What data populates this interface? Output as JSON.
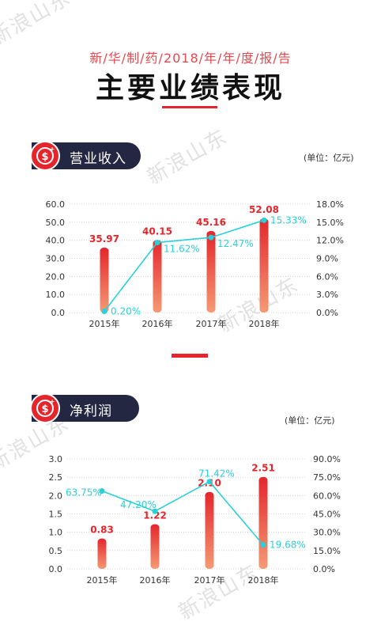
{
  "header": {
    "subtitle": "新/华/制/药/2018/年/年/度/报/告",
    "title": "主要业绩表现"
  },
  "watermark": "新浪山东",
  "colors": {
    "bar_top": "#e4262c",
    "bar_bottom": "#f59a74",
    "line": "#2ad0d8",
    "pill_bg": "#232741",
    "accent": "#e4262c"
  },
  "sections": [
    {
      "label": "营业收入",
      "unit": "(单位：亿元)",
      "icon": "dollar-coin-icon"
    },
    {
      "label": "净利润",
      "unit": "(单位：亿元)",
      "icon": "dollar-coin-icon"
    }
  ],
  "chart_data": [
    {
      "type": "bar",
      "categories": [
        "2015年",
        "2016年",
        "2017年",
        "2018年"
      ],
      "series": [
        {
          "type": "bar",
          "values": [
            35.97,
            40.15,
            45.16,
            52.08
          ],
          "labels": [
            "35.97",
            "40.15",
            "45.16",
            "52.08"
          ]
        },
        {
          "type": "line",
          "axis": "right",
          "values": [
            0.2,
            11.62,
            12.47,
            15.33
          ],
          "labels": [
            "0.20%",
            "11.62%",
            "12.47%",
            "15.33%"
          ]
        }
      ],
      "ylim": [
        0,
        60
      ],
      "yticks": [
        "0.0",
        "10.0",
        "20.0",
        "30.0",
        "40.0",
        "50.0",
        "60.0"
      ],
      "y2lim": [
        0,
        18
      ],
      "y2ticks": [
        "0.0%",
        "3.0%",
        "6.0%",
        "9.0%",
        "12.0%",
        "15.0%",
        "18.0%"
      ],
      "grid": true
    },
    {
      "type": "bar",
      "categories": [
        "2015年",
        "2016年",
        "2017年",
        "2018年"
      ],
      "series": [
        {
          "type": "bar",
          "values": [
            0.83,
            1.22,
            2.1,
            2.51
          ],
          "labels": [
            "0.83",
            "1.22",
            "2.10",
            "2.51"
          ]
        },
        {
          "type": "line",
          "axis": "right",
          "values": [
            63.75,
            47.2,
            71.42,
            19.68
          ],
          "labels": [
            "63.75%",
            "47.20%",
            "71.42%",
            "19.68%"
          ]
        }
      ],
      "ylim": [
        0,
        3
      ],
      "yticks": [
        "0.0",
        "0.5",
        "1.0",
        "1.5",
        "2.0",
        "2.5",
        "3.0"
      ],
      "y2lim": [
        0,
        90
      ],
      "y2ticks": [
        "0.0%",
        "15.0%",
        "30.0%",
        "45.0%",
        "60.0%",
        "75.0%",
        "90.0%"
      ],
      "grid": true
    }
  ]
}
